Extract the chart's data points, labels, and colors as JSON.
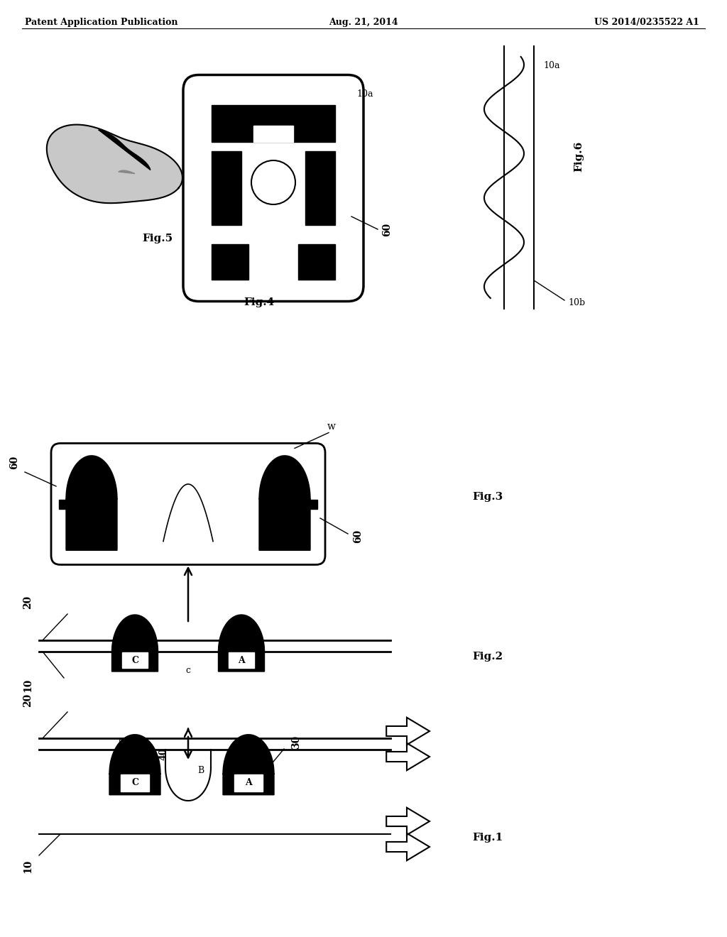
{
  "bg_color": "#ffffff",
  "header_left": "Patent Application Publication",
  "header_center": "Aug. 21, 2014",
  "header_right": "US 2014/0235522 A1",
  "fig_labels": {
    "fig1": "Fig.1",
    "fig2": "Fig.2",
    "fig3": "Fig.3",
    "fig4": "Fig.4",
    "fig5": "Fig.5",
    "fig6": "Fig.6"
  }
}
